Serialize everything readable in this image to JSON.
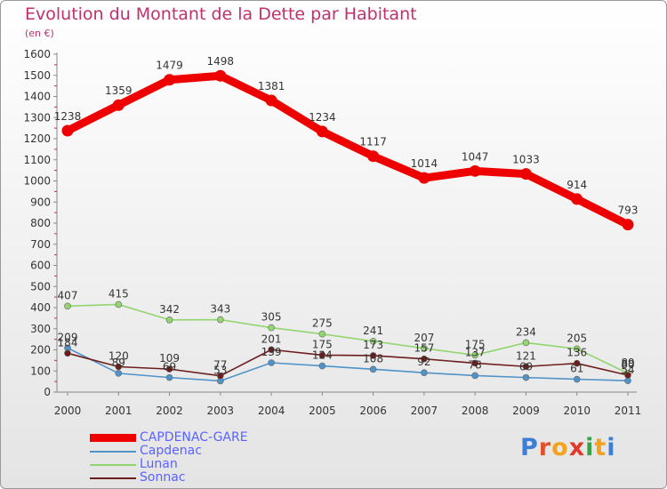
{
  "title": "Evolution du Montant de la Dette par Habitant",
  "subtitle": "(en €)",
  "logo": {
    "text": "Proxiti",
    "letter_colors": [
      "#3d7fd6",
      "#e0532b",
      "#f2a21d",
      "#e23a2a",
      "#3aa14a",
      "#f2a21d",
      "#3d7fd6"
    ]
  },
  "chart_data": {
    "type": "line",
    "x": [
      "2000",
      "2001",
      "2002",
      "2003",
      "2004",
      "2005",
      "2006",
      "2007",
      "2008",
      "2009",
      "2010",
      "2011"
    ],
    "ylim": [
      0,
      1600
    ],
    "yticks": [
      0,
      100,
      200,
      300,
      400,
      500,
      600,
      700,
      800,
      900,
      1000,
      1100,
      1200,
      1300,
      1400,
      1500,
      1600
    ],
    "grid": false,
    "legend_position": "bottom-left",
    "series": [
      {
        "name": "CAPDENAC-GARE",
        "color": "#ee0000",
        "values": [
          1238,
          1359,
          1479,
          1498,
          1381,
          1234,
          1117,
          1014,
          1047,
          1033,
          914,
          793
        ]
      },
      {
        "name": "Capdenac",
        "color": "#4f93c8",
        "values": [
          209,
          89,
          69,
          53,
          139,
          124,
          108,
          92,
          78,
          69,
          61,
          54
        ]
      },
      {
        "name": "Lunan",
        "color": "#93d56e",
        "values": [
          407,
          415,
          342,
          343,
          305,
          275,
          241,
          207,
          175,
          234,
          205,
          89
        ]
      },
      {
        "name": "Sonnac",
        "color": "#6e1d1d",
        "values": [
          184,
          120,
          109,
          77,
          201,
          175,
          173,
          157,
          137,
          121,
          136,
          80
        ]
      }
    ]
  }
}
